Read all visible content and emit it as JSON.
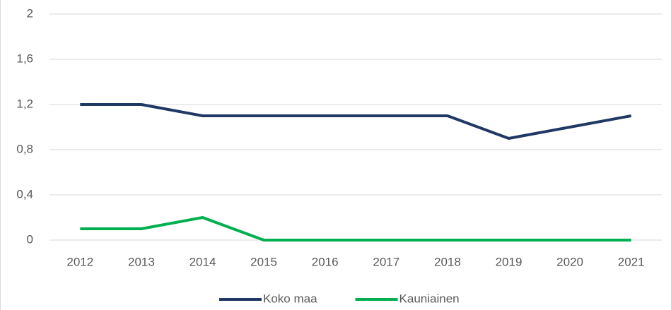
{
  "chart_data": {
    "type": "line",
    "categories": [
      "2012",
      "2013",
      "2014",
      "2015",
      "2016",
      "2017",
      "2018",
      "2019",
      "2020",
      "2021"
    ],
    "series": [
      {
        "name": "Koko maa",
        "color": "#203864",
        "values": [
          1.2,
          1.2,
          1.1,
          1.1,
          1.1,
          1.1,
          1.1,
          0.9,
          1.0,
          1.1
        ]
      },
      {
        "name": "Kauniainen",
        "color": "#00b050",
        "values": [
          0.1,
          0.1,
          0.2,
          0,
          0,
          0,
          0,
          0,
          0,
          0
        ]
      }
    ],
    "ylim": [
      0,
      2
    ],
    "yticks": [
      0,
      {
        "value": 0.4,
        "label": "0,4"
      },
      {
        "value": 0.8,
        "label": "0,8"
      },
      {
        "value": 1.2,
        "label": "1,2"
      },
      {
        "value": 1.6,
        "label": "1,6"
      },
      2
    ],
    "grid": true,
    "legend": "bottom"
  }
}
